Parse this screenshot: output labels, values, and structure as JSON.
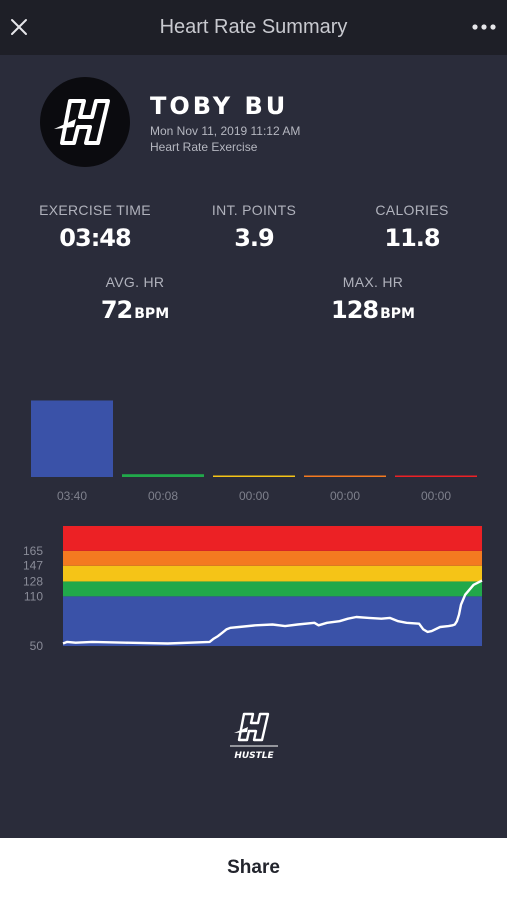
{
  "header": {
    "title": "Heart Rate Summary",
    "close_icon": "close-icon",
    "more_icon": "more-horizontal-icon"
  },
  "profile": {
    "name": "TOBY BU",
    "date": "Mon Nov 11, 2019 11:12 AM",
    "type": "Heart Rate Exercise",
    "avatar_icon": "hustle-logo-icon"
  },
  "stats": {
    "exercise_time": {
      "label": "EXERCISE TIME",
      "value": "03:48"
    },
    "int_points": {
      "label": "INT. POINTS",
      "value": "3.9"
    },
    "calories": {
      "label": "CALORIES",
      "value": "11.8"
    },
    "avg_hr": {
      "label": "AVG. HR",
      "value": "72",
      "unit": "BPM"
    },
    "max_hr": {
      "label": "MAX. HR",
      "value": "128",
      "unit": "BPM"
    }
  },
  "chart_data": [
    {
      "type": "bar",
      "categories": [
        "03:40",
        "00:08",
        "00:00",
        "00:00",
        "00:00"
      ],
      "values": [
        220,
        8,
        0,
        0,
        0
      ],
      "colors": [
        "#3a52a8",
        "#21a84a",
        "#f5c417",
        "#f47a20",
        "#ec2125"
      ],
      "ylim": [
        0,
        230
      ]
    },
    {
      "type": "line",
      "ylim": [
        50,
        195
      ],
      "yticks": [
        "165",
        "147",
        "128",
        "110",
        "50"
      ],
      "zones": [
        {
          "from": 50,
          "to": 110,
          "color": "#3a52a8"
        },
        {
          "from": 110,
          "to": 128,
          "color": "#21a84a"
        },
        {
          "from": 128,
          "to": 147,
          "color": "#f5c417"
        },
        {
          "from": 147,
          "to": 165,
          "color": "#f47a20"
        },
        {
          "from": 165,
          "to": 195,
          "color": "#ec2125"
        }
      ],
      "series": [
        {
          "color": "#ffffff",
          "x": [
            0,
            0.01,
            0.03,
            0.07,
            0.15,
            0.25,
            0.35,
            0.36,
            0.37,
            0.38,
            0.39,
            0.4,
            0.42,
            0.46,
            0.5,
            0.53,
            0.56,
            0.6,
            0.61,
            0.63,
            0.66,
            0.68,
            0.7,
            0.73,
            0.76,
            0.78,
            0.8,
            0.82,
            0.85,
            0.86,
            0.87,
            0.88,
            0.9,
            0.92,
            0.93,
            0.935,
            0.94,
            0.945,
            0.95,
            0.96,
            0.98,
            1.0
          ],
          "y": [
            53,
            55,
            54,
            55,
            54,
            53,
            55,
            59,
            62,
            66,
            70,
            72,
            73,
            75,
            76,
            74,
            76,
            78,
            75,
            78,
            80,
            83,
            85,
            84,
            83,
            84,
            80,
            78,
            77,
            70,
            67,
            68,
            73,
            74,
            75,
            76,
            80,
            88,
            100,
            112,
            124,
            129
          ]
        }
      ]
    }
  ],
  "branding": {
    "logo_text": "HUSTLE"
  },
  "footer": {
    "share_label": "Share"
  }
}
